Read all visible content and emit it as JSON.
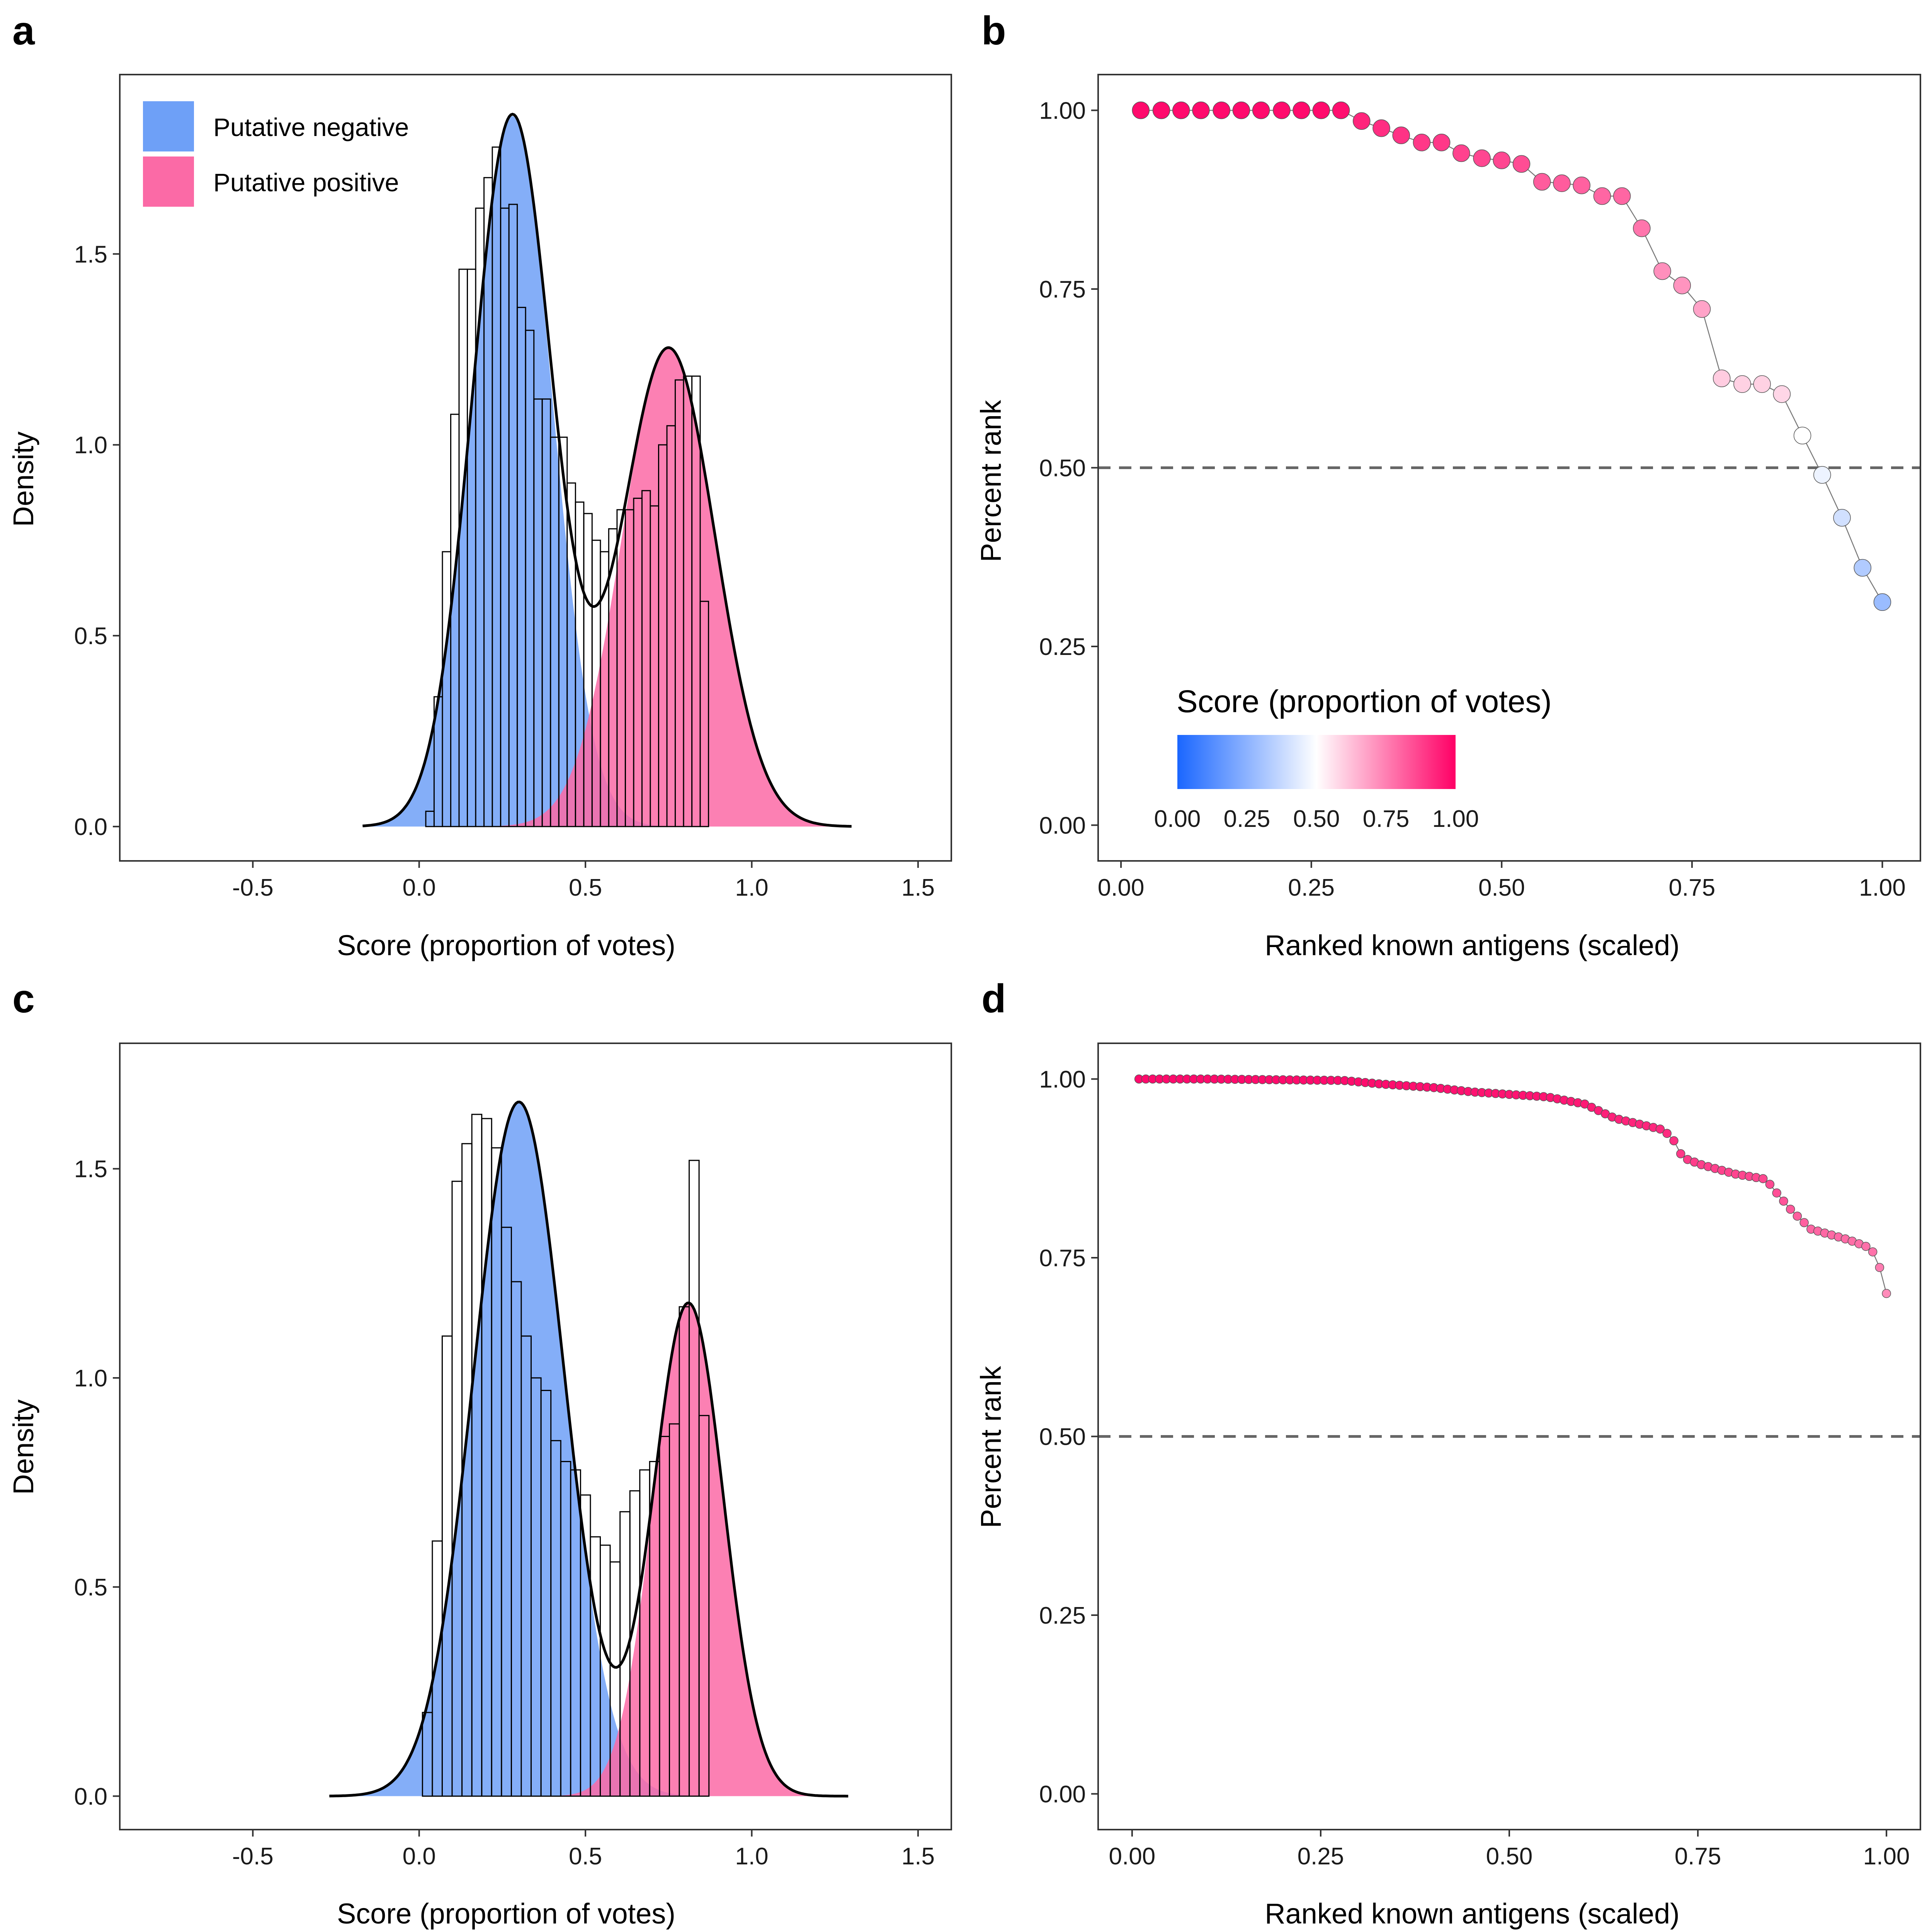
{
  "colors": {
    "negative": "#6ea0f7",
    "positive": "#fb6aa6",
    "gradient_low": "#1a66ff",
    "gradient_mid": "#ffffff",
    "gradient_high": "#ff0066",
    "dashed_line": "#666666"
  },
  "panels": {
    "a": {
      "letter": "a"
    },
    "b": {
      "letter": "b"
    },
    "c": {
      "letter": "c"
    },
    "d": {
      "letter": "d"
    }
  },
  "chart_data": [
    {
      "panel": "a",
      "type": "histogram_with_mixture_density",
      "xlabel": "Score (proportion of votes)",
      "ylabel": "Density",
      "xlim": [
        -0.9,
        1.6
      ],
      "ylim": [
        -0.09,
        1.97
      ],
      "xticks": [
        "-0.5",
        "0.0",
        "0.5",
        "1.0",
        "1.5"
      ],
      "xtick_values": [
        -0.5,
        0.0,
        0.5,
        1.0,
        1.5
      ],
      "yticks": [
        "0.0",
        "0.5",
        "1.0",
        "1.5"
      ],
      "ytick_values": [
        0.0,
        0.5,
        1.0,
        1.5
      ],
      "legend": {
        "position": "top-left",
        "items": [
          "Putative negative",
          "Putative positive"
        ]
      },
      "histogram": {
        "bin_start": 0.02,
        "bin_width": 0.025,
        "heights": [
          0.04,
          0.34,
          0.72,
          1.08,
          1.46,
          1.46,
          1.62,
          1.7,
          1.78,
          1.62,
          1.63,
          1.36,
          1.3,
          1.12,
          1.12,
          1.02,
          1.02,
          0.9,
          0.85,
          0.82,
          0.75,
          0.72,
          0.78,
          0.83,
          0.83,
          0.86,
          0.88,
          0.84,
          1.0,
          1.05,
          1.17,
          1.18,
          1.18,
          0.59
        ]
      },
      "components": [
        {
          "name": "Putative negative",
          "mean": 0.28,
          "sd": 0.12,
          "weight": 0.56
        },
        {
          "name": "Putative positive",
          "mean": 0.75,
          "sd": 0.14,
          "weight": 0.44
        }
      ],
      "density_x_range": [
        -0.17,
        1.3
      ]
    },
    {
      "panel": "b",
      "type": "scatter_line",
      "xlabel": "Ranked known antigens (scaled)",
      "ylabel": "Percent rank",
      "xlim": [
        -0.03,
        1.05
      ],
      "ylim": [
        -0.05,
        1.05
      ],
      "xticks": [
        "0.00",
        "0.25",
        "0.50",
        "0.75",
        "1.00"
      ],
      "xtick_values": [
        0.0,
        0.25,
        0.5,
        0.75,
        1.0
      ],
      "yticks": [
        "0.00",
        "0.25",
        "0.50",
        "0.75",
        "1.00"
      ],
      "ytick_values": [
        0.0,
        0.25,
        0.5,
        0.75,
        1.0
      ],
      "hline": 0.5,
      "colorbar": {
        "title": "Score (proportion of votes)",
        "labels": [
          "0.00",
          "0.25",
          "0.50",
          "0.75",
          "1.00"
        ],
        "values": [
          0.0,
          0.25,
          0.5,
          0.75,
          1.0
        ]
      },
      "points": {
        "x": [
          0.026,
          0.053,
          0.079,
          0.105,
          0.132,
          0.158,
          0.184,
          0.211,
          0.237,
          0.263,
          0.289,
          0.316,
          0.342,
          0.368,
          0.395,
          0.421,
          0.447,
          0.474,
          0.5,
          0.526,
          0.553,
          0.579,
          0.605,
          0.632,
          0.658,
          0.684,
          0.711,
          0.737,
          0.763,
          0.789,
          0.816,
          0.842,
          0.868,
          0.895,
          0.921,
          0.947,
          0.974,
          1.0
        ],
        "y": [
          1.0,
          1.0,
          1.0,
          1.0,
          1.0,
          1.0,
          1.0,
          1.0,
          1.0,
          1.0,
          1.0,
          0.985,
          0.975,
          0.965,
          0.955,
          0.955,
          0.94,
          0.933,
          0.93,
          0.925,
          0.9,
          0.898,
          0.895,
          0.88,
          0.88,
          0.835,
          0.775,
          0.755,
          0.722,
          0.625,
          0.617,
          0.617,
          0.603,
          0.545,
          0.49,
          0.43,
          0.36,
          0.312
        ],
        "score": [
          0.98,
          0.98,
          0.98,
          0.98,
          0.98,
          0.98,
          0.98,
          0.98,
          0.98,
          0.98,
          0.97,
          0.93,
          0.91,
          0.9,
          0.89,
          0.89,
          0.87,
          0.86,
          0.86,
          0.85,
          0.82,
          0.82,
          0.81,
          0.8,
          0.8,
          0.77,
          0.72,
          0.71,
          0.68,
          0.6,
          0.59,
          0.59,
          0.58,
          0.5,
          0.46,
          0.4,
          0.33,
          0.28
        ]
      }
    },
    {
      "panel": "c",
      "type": "histogram_with_mixture_density",
      "xlabel": "Score (proportion of votes)",
      "ylabel": "Density",
      "xlim": [
        -0.9,
        1.6
      ],
      "ylim": [
        -0.08,
        1.8
      ],
      "xticks": [
        "-0.5",
        "0.0",
        "0.5",
        "1.0",
        "1.5"
      ],
      "xtick_values": [
        -0.5,
        0.0,
        0.5,
        1.0,
        1.5
      ],
      "yticks": [
        "0.0",
        "0.5",
        "1.0",
        "1.5"
      ],
      "ytick_values": [
        0.0,
        0.5,
        1.0,
        1.5
      ],
      "histogram": {
        "bin_start": 0.01,
        "bin_width": 0.0297,
        "heights": [
          0.2,
          0.61,
          1.1,
          1.47,
          1.56,
          1.63,
          1.62,
          1.55,
          1.36,
          1.23,
          1.1,
          1.0,
          0.97,
          0.85,
          0.8,
          0.78,
          0.72,
          0.62,
          0.6,
          0.56,
          0.68,
          0.73,
          0.78,
          0.8,
          0.86,
          0.89,
          1.17,
          1.52,
          0.91
        ]
      },
      "components": [
        {
          "name": "Putative negative",
          "mean": 0.3,
          "sd": 0.137,
          "weight": 0.57
        },
        {
          "name": "Putative positive",
          "mean": 0.81,
          "sd": 0.105,
          "weight": 0.31
        }
      ],
      "density_x_range": [
        -0.27,
        1.29
      ]
    },
    {
      "panel": "d",
      "type": "scatter_line",
      "xlabel": "Ranked known antigens (scaled)",
      "ylabel": "Percent rank",
      "xlim": [
        -0.045,
        1.045
      ],
      "ylim": [
        -0.05,
        1.05
      ],
      "xticks": [
        "0.00",
        "0.25",
        "0.50",
        "0.75",
        "1.00"
      ],
      "xtick_values": [
        0.0,
        0.25,
        0.5,
        0.75,
        1.0
      ],
      "yticks": [
        "0.00",
        "0.25",
        "0.50",
        "0.75",
        "1.00"
      ],
      "ytick_values": [
        0.0,
        0.25,
        0.5,
        0.75,
        1.0
      ],
      "hline": 0.5,
      "curve_points": [
        [
          0.0,
          1.0
        ],
        [
          0.1,
          1.0
        ],
        [
          0.28,
          0.998
        ],
        [
          0.33,
          0.993
        ],
        [
          0.4,
          0.988
        ],
        [
          0.45,
          0.982
        ],
        [
          0.55,
          0.975
        ],
        [
          0.6,
          0.965
        ],
        [
          0.64,
          0.945
        ],
        [
          0.7,
          0.93
        ],
        [
          0.715,
          0.92
        ],
        [
          0.73,
          0.89
        ],
        [
          0.755,
          0.88
        ],
        [
          0.8,
          0.867
        ],
        [
          0.84,
          0.86
        ],
        [
          0.855,
          0.84
        ],
        [
          0.875,
          0.815
        ],
        [
          0.9,
          0.79
        ],
        [
          0.95,
          0.775
        ],
        [
          0.975,
          0.765
        ],
        [
          0.985,
          0.755
        ],
        [
          0.99,
          0.74
        ],
        [
          1.0,
          0.7
        ]
      ]
    }
  ]
}
